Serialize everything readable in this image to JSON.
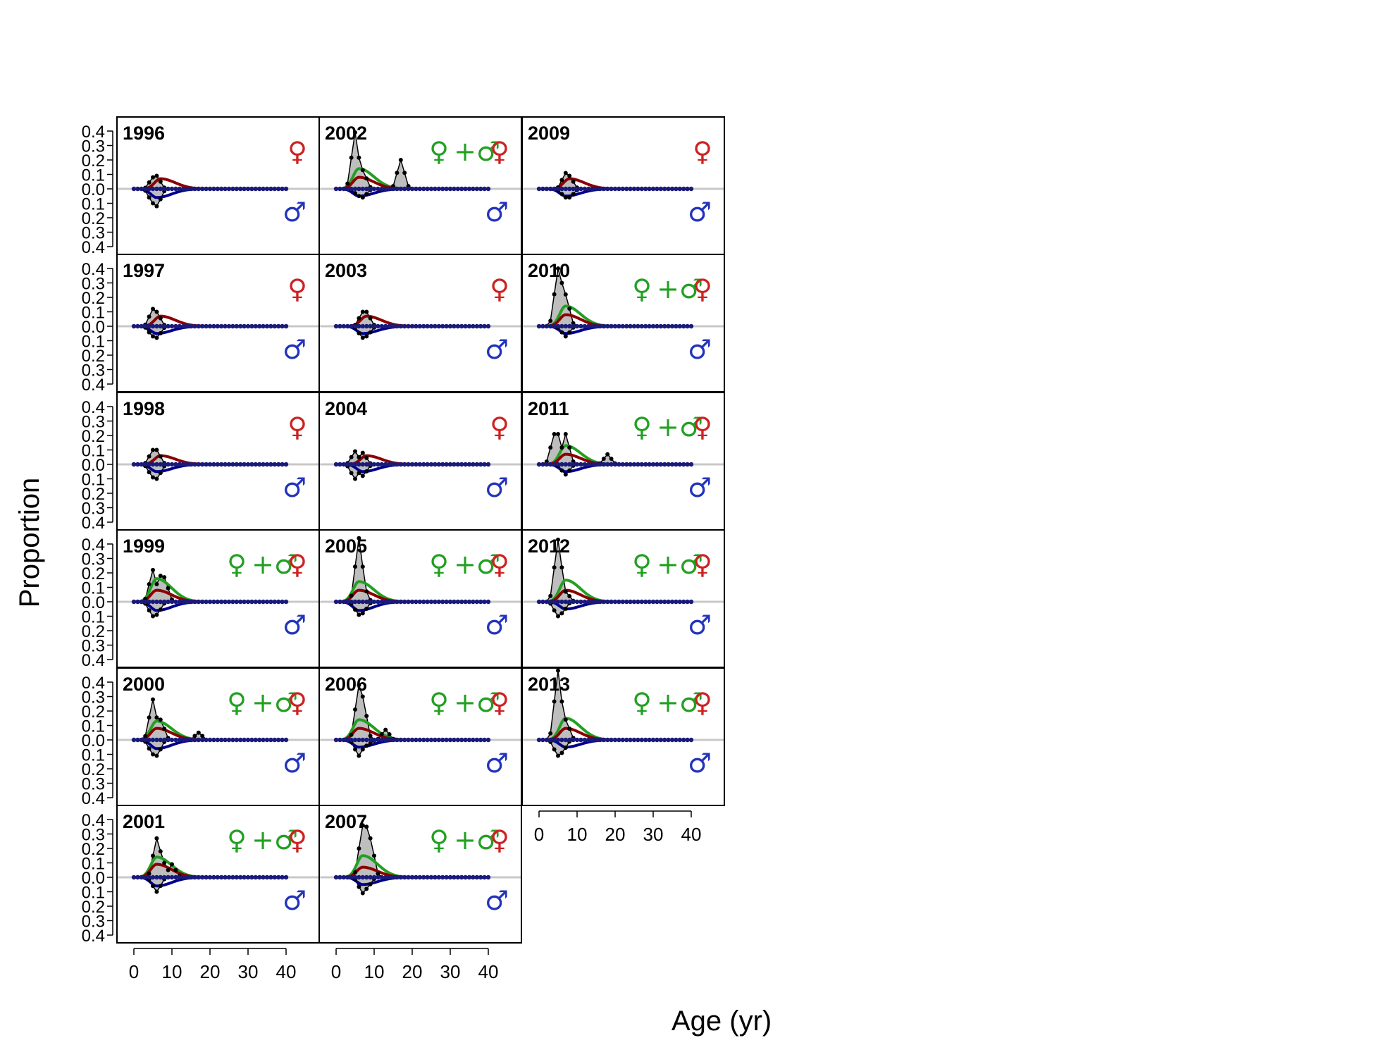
{
  "chart_data": {
    "type": "line",
    "xlabel": "Age (yr)",
    "ylabel": "Proportion",
    "xlim": [
      0,
      40
    ],
    "ylim": [
      -0.4,
      0.4
    ],
    "x_ticks": [
      0,
      10,
      20,
      30,
      40
    ],
    "y_tick_labels": [
      "0.4",
      "0.3",
      "0.2",
      "0.1",
      "0.0",
      "0.1",
      "0.2",
      "0.3",
      "0.4"
    ],
    "layout": {
      "rows": 6,
      "cols": 3,
      "order": "column-major"
    },
    "colors": {
      "female": "#cc2222",
      "male": "#2233bb",
      "combined": "#22a022",
      "observed_fill": "#bebebe",
      "female_fit": "#8b0000",
      "male_fit": "#00008b"
    },
    "legend_symbols": {
      "female": "♀",
      "male": "♂",
      "combined": "♀ + ♂"
    },
    "panels": [
      {
        "year": "1996",
        "combined": false,
        "female_obs": {
          "peaks": [
            [
              5,
              0.08
            ],
            [
              6,
              0.09
            ]
          ]
        },
        "male_obs": {
          "peaks": [
            [
              5,
              0.1
            ],
            [
              6,
              0.12
            ]
          ]
        },
        "fit": {
          "female_peak": [
            7,
            0.07
          ],
          "male_peak": [
            6,
            0.06
          ]
        }
      },
      {
        "year": "1997",
        "combined": false,
        "female_obs": {
          "peaks": [
            [
              5,
              0.12
            ],
            [
              6,
              0.1
            ]
          ]
        },
        "male_obs": {
          "peaks": [
            [
              5,
              0.07
            ],
            [
              6,
              0.08
            ]
          ]
        },
        "fit": {
          "female_peak": [
            7,
            0.07
          ],
          "male_peak": [
            6,
            0.05
          ]
        }
      },
      {
        "year": "1998",
        "combined": false,
        "female_obs": {
          "peaks": [
            [
              5,
              0.1
            ],
            [
              6,
              0.1
            ]
          ]
        },
        "male_obs": {
          "peaks": [
            [
              5,
              0.09
            ],
            [
              6,
              0.1
            ]
          ]
        },
        "fit": {
          "female_peak": [
            7,
            0.06
          ],
          "male_peak": [
            6,
            0.05
          ]
        }
      },
      {
        "year": "1999",
        "combined": true,
        "obs_peaks": [
          [
            5,
            0.22
          ],
          [
            7,
            0.18
          ],
          [
            8,
            0.17
          ]
        ],
        "male_obs": {
          "peaks": [
            [
              5,
              0.1
            ],
            [
              6,
              0.09
            ]
          ]
        },
        "fit": {
          "combined_peak": [
            6,
            0.16
          ],
          "female_peak": [
            6,
            0.08
          ],
          "male_peak": [
            6,
            0.06
          ]
        }
      },
      {
        "year": "2000",
        "combined": true,
        "obs_peaks": [
          [
            5,
            0.28
          ],
          [
            7,
            0.14
          ],
          [
            17,
            0.05
          ]
        ],
        "male_obs": {
          "peaks": [
            [
              5,
              0.1
            ],
            [
              6,
              0.11
            ]
          ]
        },
        "fit": {
          "combined_peak": [
            6,
            0.13
          ],
          "female_peak": [
            6,
            0.08
          ],
          "male_peak": [
            6,
            0.06
          ]
        }
      },
      {
        "year": "2001",
        "combined": true,
        "obs_peaks": [
          [
            6,
            0.27
          ],
          [
            7,
            0.18
          ],
          [
            10,
            0.09
          ]
        ],
        "male_obs": {
          "peaks": [
            [
              6,
              0.1
            ]
          ]
        },
        "fit": {
          "combined_peak": [
            6,
            0.14
          ],
          "female_peak": [
            6,
            0.09
          ],
          "male_peak": [
            6,
            0.06
          ]
        }
      },
      {
        "year": "2002",
        "combined": true,
        "obs_peaks": [
          [
            5,
            0.39
          ],
          [
            7,
            0.13
          ],
          [
            17,
            0.2
          ]
        ],
        "male_obs": {
          "peaks": [
            [
              6,
              0.05
            ],
            [
              7,
              0.06
            ]
          ]
        },
        "fit": {
          "combined_peak": [
            6,
            0.14
          ],
          "female_peak": [
            6,
            0.08
          ],
          "male_peak": [
            6,
            0.05
          ]
        }
      },
      {
        "year": "2003",
        "combined": false,
        "female_obs": {
          "peaks": [
            [
              7,
              0.1
            ],
            [
              8,
              0.1
            ]
          ]
        },
        "male_obs": {
          "peaks": [
            [
              7,
              0.08
            ],
            [
              8,
              0.07
            ]
          ]
        },
        "fit": {
          "female_peak": [
            8,
            0.07
          ],
          "male_peak": [
            7,
            0.05
          ]
        }
      },
      {
        "year": "2004",
        "combined": false,
        "female_obs": {
          "peaks": [
            [
              5,
              0.09
            ],
            [
              7,
              0.08
            ]
          ]
        },
        "male_obs": {
          "peaks": [
            [
              5,
              0.1
            ],
            [
              7,
              0.08
            ]
          ]
        },
        "fit": {
          "female_peak": [
            8,
            0.06
          ],
          "male_peak": [
            7,
            0.05
          ]
        }
      },
      {
        "year": "2005",
        "combined": true,
        "obs_peaks": [
          [
            6,
            0.44
          ],
          [
            7,
            0.13
          ]
        ],
        "male_obs": {
          "peaks": [
            [
              6,
              0.09
            ],
            [
              7,
              0.08
            ]
          ]
        },
        "fit": {
          "combined_peak": [
            6,
            0.14
          ],
          "female_peak": [
            6,
            0.08
          ],
          "male_peak": [
            6,
            0.06
          ]
        }
      },
      {
        "year": "2006",
        "combined": true,
        "obs_peaks": [
          [
            6,
            0.38
          ],
          [
            7,
            0.3
          ],
          [
            13,
            0.07
          ]
        ],
        "male_obs": {
          "peaks": [
            [
              6,
              0.11
            ],
            [
              8,
              0.04
            ]
          ]
        },
        "fit": {
          "combined_peak": [
            6,
            0.14
          ],
          "female_peak": [
            6,
            0.08
          ],
          "male_peak": [
            6,
            0.05
          ]
        }
      },
      {
        "year": "2007",
        "combined": true,
        "obs_peaks": [
          [
            7,
            0.36
          ],
          [
            8,
            0.35
          ],
          [
            9,
            0.27
          ]
        ],
        "male_obs": {
          "peaks": [
            [
              7,
              0.11
            ],
            [
              8,
              0.08
            ]
          ]
        },
        "fit": {
          "combined_peak": [
            7,
            0.15
          ],
          "female_peak": [
            7,
            0.07
          ],
          "male_peak": [
            7,
            0.05
          ]
        }
      },
      {
        "year": "2009",
        "combined": false,
        "female_obs": {
          "peaks": [
            [
              7,
              0.11
            ],
            [
              8,
              0.09
            ]
          ]
        },
        "male_obs": {
          "peaks": [
            [
              7,
              0.06
            ],
            [
              8,
              0.06
            ]
          ]
        },
        "fit": {
          "female_peak": [
            8,
            0.07
          ],
          "male_peak": [
            7,
            0.05
          ]
        }
      },
      {
        "year": "2010",
        "combined": true,
        "obs_peaks": [
          [
            5,
            0.4
          ],
          [
            6,
            0.3
          ],
          [
            7,
            0.22
          ]
        ],
        "male_obs": {
          "peaks": [
            [
              7,
              0.07
            ]
          ]
        },
        "fit": {
          "combined_peak": [
            7,
            0.14
          ],
          "female_peak": [
            7,
            0.08
          ],
          "male_peak": [
            7,
            0.05
          ]
        }
      },
      {
        "year": "2011",
        "combined": true,
        "obs_peaks": [
          [
            4,
            0.21
          ],
          [
            5,
            0.21
          ],
          [
            7,
            0.21
          ],
          [
            18,
            0.07
          ]
        ],
        "male_obs": {
          "peaks": [
            [
              7,
              0.07
            ]
          ]
        },
        "fit": {
          "combined_peak": [
            7,
            0.13
          ],
          "female_peak": [
            7,
            0.07
          ],
          "male_peak": [
            7,
            0.05
          ]
        }
      },
      {
        "year": "2012",
        "combined": true,
        "obs_peaks": [
          [
            5,
            0.43
          ],
          [
            6,
            0.09
          ],
          [
            7,
            0.07
          ]
        ],
        "male_obs": {
          "peaks": [
            [
              5,
              0.1
            ],
            [
              6,
              0.08
            ]
          ]
        },
        "fit": {
          "combined_peak": [
            7,
            0.15
          ],
          "female_peak": [
            7,
            0.08
          ],
          "male_peak": [
            7,
            0.05
          ]
        }
      },
      {
        "year": "2013",
        "combined": true,
        "obs_peaks": [
          [
            5,
            0.48
          ],
          [
            7,
            0.14
          ]
        ],
        "male_obs": {
          "peaks": [
            [
              5,
              0.11
            ],
            [
              6,
              0.09
            ]
          ]
        },
        "fit": {
          "combined_peak": [
            7,
            0.15
          ],
          "female_peak": [
            7,
            0.08
          ],
          "male_peak": [
            7,
            0.05
          ]
        }
      }
    ]
  }
}
